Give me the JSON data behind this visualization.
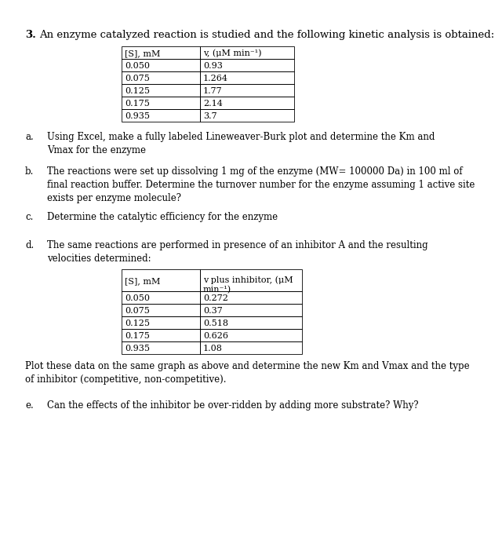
{
  "title_number": "3.",
  "title_text": "An enzyme catalyzed reaction is studied and the following kinetic analysis is obtained:",
  "table1_headers": [
    "[S], mM",
    "v, (μM min⁻¹)"
  ],
  "table1_data": [
    [
      "0.050",
      "0.93"
    ],
    [
      "0.075",
      "1.264"
    ],
    [
      "0.125",
      "1.77"
    ],
    [
      "0.175",
      "2.14"
    ],
    [
      "0.935",
      "3.7"
    ]
  ],
  "part_a_label": "a.",
  "part_a_text": "Using Excel, make a fully labeled Lineweaver-Burk plot and determine the Km and\nVmax for the enzyme",
  "part_b_label": "b.",
  "part_b_text": "The reactions were set up dissolving 1 mg of the enzyme (MW= 100000 Da) in 100 ml of\nfinal reaction buffer. Determine the turnover number for the enzyme assuming 1 active site\nexists per enzyme molecule?",
  "part_c_label": "c.",
  "part_c_text": "Determine the catalytic efficiency for the enzyme",
  "part_d_label": "d.",
  "part_d_text": "The same reactions are performed in presence of an inhibitor A and the resulting\nvelocities determined:",
  "table2_headers": [
    "[S], mM",
    "v plus inhibitor, (μM\nmin⁻¹)"
  ],
  "table2_data": [
    [
      "0.050",
      "0.272"
    ],
    [
      "0.075",
      "0.37"
    ],
    [
      "0.125",
      "0.518"
    ],
    [
      "0.175",
      "0.626"
    ],
    [
      "0.935",
      "1.08"
    ]
  ],
  "part_d_end": "Plot these data on the same graph as above and determine the new Km and Vmax and the type\nof inhibitor (competitive, non-competitive).",
  "part_e_label": "e.",
  "part_e_text": "Can the effects of the inhibitor be over-ridden by adding more substrate? Why?",
  "bg_color": "#ffffff",
  "text_color": "#000000",
  "fs_title": 9.5,
  "fs_body": 8.5,
  "fs_table": 8.0,
  "lw_table": 0.6
}
